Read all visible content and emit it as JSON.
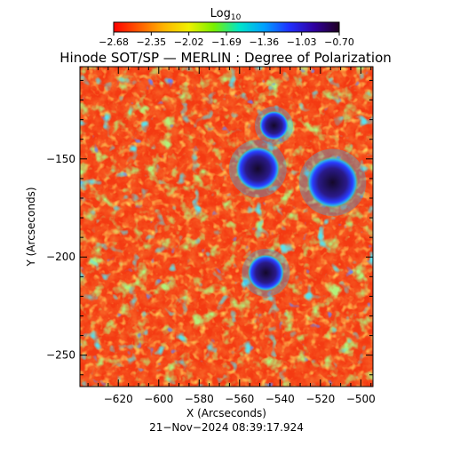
{
  "colorbar": {
    "title": "Log",
    "title_sub": "10",
    "ticks": [
      "−2.68",
      "−2.35",
      "−2.02",
      "−1.69",
      "−1.36",
      "−1.03",
      "−0.70"
    ],
    "colormap": [
      "#ff0000",
      "#ff5a00",
      "#ffb400",
      "#f0f000",
      "#78f000",
      "#00e6c8",
      "#00a0ff",
      "#2030ff",
      "#3000a0",
      "#200020"
    ]
  },
  "title": "Hinode SOT/SP — MERLIN : Degree of Polarization",
  "x_axis": {
    "label": "X (Arcseconds)",
    "ticks": [
      "−620",
      "−600",
      "−580",
      "−560",
      "−540",
      "−520",
      "−500"
    ],
    "tick_values": [
      -620,
      -600,
      -580,
      -560,
      -540,
      -520,
      -500
    ],
    "range": [
      -639,
      -494
    ]
  },
  "y_axis": {
    "label": "Y (Arcseconds)",
    "ticks": [
      "−150",
      "−200",
      "−250"
    ],
    "tick_values": [
      -150,
      -200,
      -250
    ],
    "range": [
      -266,
      -103
    ]
  },
  "footer": {
    "timestamp": "21−Nov−2024 08:39:17.924"
  },
  "map_palette": {
    "background": "#f43a12",
    "quiet": [
      "#ff4a10",
      "#e81e0a",
      "#ff7a18",
      "#ffb020"
    ],
    "network": [
      "#d8e818",
      "#6ee43a",
      "#2fd8a8",
      "#18b0f0"
    ],
    "strong": [
      "#1f3cff",
      "#2a1cc8",
      "#24106e",
      "#160a30"
    ]
  },
  "sunspots": [
    {
      "x": -514,
      "y": -162,
      "r": 7
    },
    {
      "x": -551,
      "y": -155,
      "r": 6
    },
    {
      "x": -547,
      "y": -208,
      "r": 5
    },
    {
      "x": -543,
      "y": -133,
      "r": 4
    }
  ]
}
